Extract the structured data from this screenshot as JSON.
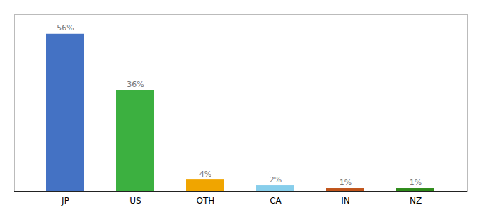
{
  "chart_data": {
    "type": "bar",
    "categories": [
      "JP",
      "US",
      "OTH",
      "CA",
      "IN",
      "NZ"
    ],
    "values": [
      56,
      36,
      4,
      2,
      1,
      1
    ],
    "value_labels": [
      "56%",
      "36%",
      "4%",
      "2%",
      "1%",
      "1%"
    ],
    "colors": [
      "#4472C4",
      "#3CB040",
      "#F0A500",
      "#87CEEB",
      "#C0541A",
      "#2E8B1A"
    ],
    "ylim": [
      0,
      63
    ],
    "data_labels": true,
    "tick_labels": "x"
  }
}
